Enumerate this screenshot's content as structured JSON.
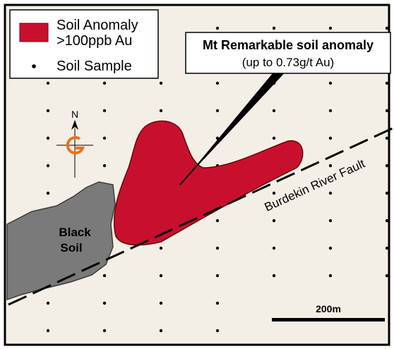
{
  "map": {
    "legend": {
      "anomaly_label_line1": "Soil Anomaly",
      "anomaly_label_line2": ">100ppb Au",
      "sample_label": "Soil Sample"
    },
    "callout": {
      "title": "Mt Remarkable soil anomaly",
      "subtitle": "(up to 0.73g/t Au)"
    },
    "north_arrow_label": "N",
    "black_soil_line1": "Black",
    "black_soil_line2": "Soil",
    "fault_label": "Burdekin River Fault",
    "scale_bar_label": "200m",
    "colors": {
      "anomaly": "#C8102E",
      "black_soil": "#7a7a7a",
      "north_symbol": "#E8731E",
      "background": "#F4EFE6"
    }
  }
}
